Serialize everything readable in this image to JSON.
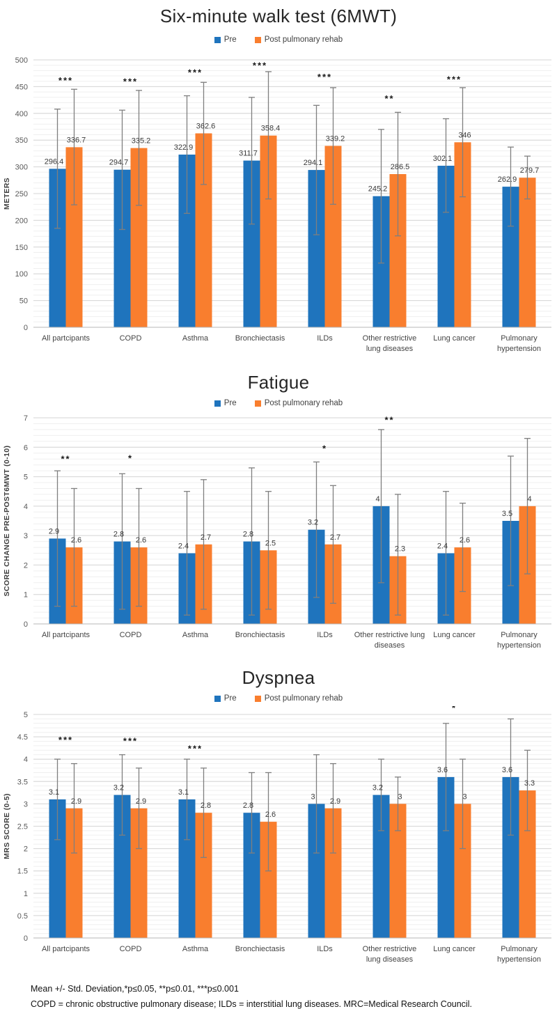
{
  "colors": {
    "pre": "#1F74BD",
    "post": "#F97E2E",
    "error_bar": "#7F7F7F",
    "grid_major": "#D6D6D6",
    "grid_minor": "#EFEFEF",
    "baseline": "#B7B7B7"
  },
  "charts": [
    {
      "type": "bar",
      "title": "Six-minute walk test (6MWT)",
      "ylabel": "METERS",
      "ylim": [
        0,
        500
      ],
      "yticks": [
        "0",
        "50",
        "100",
        "150",
        "200",
        "250",
        "300",
        "350",
        "400",
        "450",
        "500"
      ],
      "yminor": 10,
      "grid": true,
      "legend_position": "top",
      "categories": [
        [
          "All partcipants"
        ],
        [
          "COPD"
        ],
        [
          "Asthma"
        ],
        [
          "Bronchiectasis"
        ],
        [
          "ILDs"
        ],
        [
          "Other restrictive",
          "lung diseases"
        ],
        [
          "Lung cancer"
        ],
        [
          "Pulmonary",
          "hypertension"
        ]
      ],
      "series": [
        {
          "name": "Pre",
          "color": "#1F74BD",
          "points": [
            {
              "v": 296.4,
              "label": "296.4",
              "lo": 185,
              "hi": 408
            },
            {
              "v": 294.7,
              "label": "294.7",
              "lo": 183,
              "hi": 406
            },
            {
              "v": 322.9,
              "label": "322.9",
              "lo": 213,
              "hi": 433
            },
            {
              "v": 311.7,
              "label": "311.7",
              "lo": 193,
              "hi": 430
            },
            {
              "v": 294.1,
              "label": "294.1",
              "lo": 173,
              "hi": 415
            },
            {
              "v": 245.2,
              "label": "245.2",
              "lo": 120,
              "hi": 370
            },
            {
              "v": 302.1,
              "label": "302.1",
              "lo": 215,
              "hi": 390
            },
            {
              "v": 262.9,
              "label": "262.9",
              "lo": 189,
              "hi": 337
            }
          ]
        },
        {
          "name": "Post pulmonary rehab",
          "color": "#F97E2E",
          "points": [
            {
              "v": 336.7,
              "label": "336.7",
              "lo": 229,
              "hi": 445
            },
            {
              "v": 335.2,
              "label": "335.2",
              "lo": 228,
              "hi": 443
            },
            {
              "v": 362.6,
              "label": "362.6",
              "lo": 267,
              "hi": 458
            },
            {
              "v": 358.4,
              "label": "358.4",
              "lo": 240,
              "hi": 478
            },
            {
              "v": 339.2,
              "label": "339.2",
              "lo": 230,
              "hi": 448
            },
            {
              "v": 286.5,
              "label": "286.5",
              "lo": 171,
              "hi": 402
            },
            {
              "v": 346,
              "label": "346",
              "lo": 244,
              "hi": 448
            },
            {
              "v": 279.7,
              "label": "279.7",
              "lo": 240,
              "hi": 320
            }
          ]
        }
      ],
      "sig": [
        {
          "text": "***",
          "y": 456
        },
        {
          "text": "***",
          "y": 454
        },
        {
          "text": "***",
          "y": 471
        },
        {
          "text": "***",
          "y": 484
        },
        {
          "text": "***",
          "y": 462
        },
        {
          "text": "**",
          "y": 422
        },
        {
          "text": "***",
          "y": 458
        },
        null
      ]
    },
    {
      "type": "bar",
      "title": "Fatigue",
      "ylabel": "SCORE CHANGE  PRE-POST6MWT (0-10)",
      "ylim": [
        0,
        7
      ],
      "yticks": [
        "0",
        "1",
        "2",
        "3",
        "4",
        "5",
        "6",
        "7"
      ],
      "yminor": 0.2,
      "grid": true,
      "legend_position": "top",
      "categories": [
        [
          "All partcipants"
        ],
        [
          "COPD"
        ],
        [
          "Asthma"
        ],
        [
          "Bronchiectasis"
        ],
        [
          "ILDs"
        ],
        [
          "Other restrictive lung",
          "diseases"
        ],
        [
          "Lung cancer"
        ],
        [
          "Pulmonary",
          "hypertension"
        ]
      ],
      "series": [
        {
          "name": "Pre",
          "color": "#1F74BD",
          "points": [
            {
              "v": 2.9,
              "label": "2.9",
              "lo": 0.6,
              "hi": 5.2
            },
            {
              "v": 2.8,
              "label": "2.8",
              "lo": 0.5,
              "hi": 5.1
            },
            {
              "v": 2.4,
              "label": "2.4",
              "lo": 0.3,
              "hi": 4.5
            },
            {
              "v": 2.8,
              "label": "2.8",
              "lo": 0.3,
              "hi": 5.3
            },
            {
              "v": 3.2,
              "label": "3.2",
              "lo": 0.9,
              "hi": 5.5
            },
            {
              "v": 4,
              "label": "4",
              "lo": 1.4,
              "hi": 6.6
            },
            {
              "v": 2.4,
              "label": "2.4",
              "lo": 0.3,
              "hi": 4.5
            },
            {
              "v": 3.5,
              "label": "3.5",
              "lo": 1.3,
              "hi": 5.7
            }
          ]
        },
        {
          "name": "Post pulmonary rehab",
          "color": "#F97E2E",
          "points": [
            {
              "v": 2.6,
              "label": "2.6",
              "lo": 0.6,
              "hi": 4.6
            },
            {
              "v": 2.6,
              "label": "2.6",
              "lo": 0.6,
              "hi": 4.6
            },
            {
              "v": 2.7,
              "label": "2.7",
              "lo": 0.5,
              "hi": 4.9
            },
            {
              "v": 2.5,
              "label": "2.5",
              "lo": 0.5,
              "hi": 4.5
            },
            {
              "v": 2.7,
              "label": "2.7",
              "lo": 0.7,
              "hi": 4.7
            },
            {
              "v": 2.3,
              "label": "2.3",
              "lo": 0.3,
              "hi": 4.4
            },
            {
              "v": 2.6,
              "label": "2.6",
              "lo": 1.1,
              "hi": 4.1
            },
            {
              "v": 4,
              "label": "4",
              "lo": 1.7,
              "hi": 6.3
            }
          ]
        }
      ],
      "sig": [
        {
          "text": "**",
          "y": 5.5
        },
        {
          "text": "*",
          "y": 5.52
        },
        null,
        null,
        {
          "text": "*",
          "y": 5.85
        },
        {
          "text": "**",
          "y": 6.82
        },
        null,
        null
      ]
    },
    {
      "type": "bar",
      "title": "Dyspnea",
      "ylabel": "MRS SCORE (0-5)",
      "ylim": [
        0,
        5
      ],
      "yticks": [
        "0",
        "0.5",
        "1",
        "1.5",
        "2",
        "2.5",
        "3",
        "3.5",
        "4",
        "4.5",
        "5"
      ],
      "yminor": 0.1,
      "grid": true,
      "legend_position": "top",
      "categories": [
        [
          "All partcipants"
        ],
        [
          "COPD"
        ],
        [
          "Asthma"
        ],
        [
          "Bronchiectasis"
        ],
        [
          "ILDs"
        ],
        [
          "Other restrictive",
          "lung diseases"
        ],
        [
          "Lung cancer"
        ],
        [
          "Pulmonary",
          "hypertension"
        ]
      ],
      "series": [
        {
          "name": "Pre",
          "color": "#1F74BD",
          "points": [
            {
              "v": 3.1,
              "label": "3.1",
              "lo": 2.2,
              "hi": 4.0
            },
            {
              "v": 3.2,
              "label": "3.2",
              "lo": 2.3,
              "hi": 4.1
            },
            {
              "v": 3.1,
              "label": "3.1",
              "lo": 2.2,
              "hi": 4.0
            },
            {
              "v": 2.8,
              "label": "2.8",
              "lo": 1.9,
              "hi": 3.7
            },
            {
              "v": 3,
              "label": "3",
              "lo": 1.9,
              "hi": 4.1
            },
            {
              "v": 3.2,
              "label": "3.2",
              "lo": 2.4,
              "hi": 4.0
            },
            {
              "v": 3.6,
              "label": "3.6",
              "lo": 2.4,
              "hi": 4.8
            },
            {
              "v": 3.6,
              "label": "3.6",
              "lo": 2.3,
              "hi": 4.9
            }
          ]
        },
        {
          "name": "Post pulmonary rehab",
          "color": "#F97E2E",
          "points": [
            {
              "v": 2.9,
              "label": "2.9",
              "lo": 1.9,
              "hi": 3.9
            },
            {
              "v": 2.9,
              "label": "2.9",
              "lo": 2.0,
              "hi": 3.8
            },
            {
              "v": 2.8,
              "label": "2.8",
              "lo": 1.8,
              "hi": 3.8
            },
            {
              "v": 2.6,
              "label": "2.6",
              "lo": 1.5,
              "hi": 3.7
            },
            {
              "v": 2.9,
              "label": "2.9",
              "lo": 1.9,
              "hi": 3.9
            },
            {
              "v": 3,
              "label": "3",
              "lo": 2.4,
              "hi": 3.6
            },
            {
              "v": 3,
              "label": "3",
              "lo": 2.0,
              "hi": 4.0
            },
            {
              "v": 3.3,
              "label": "3.3",
              "lo": 2.4,
              "hi": 4.2
            }
          ]
        }
      ],
      "sig": [
        {
          "text": "***",
          "y": 4.36
        },
        {
          "text": "***",
          "y": 4.34
        },
        {
          "text": "***",
          "y": 4.17
        },
        null,
        null,
        null,
        {
          "text": "*",
          "y": 5.08
        },
        null
      ]
    }
  ],
  "footnotes": [
    "Mean +/-  Std. Deviation,*p≤0.05, **p≤0.01,  ***p≤0.001",
    "COPD = chronic obstructive pulmonary disease; ILDs = interstitial lung diseases. MRC=Medical Research Council."
  ]
}
